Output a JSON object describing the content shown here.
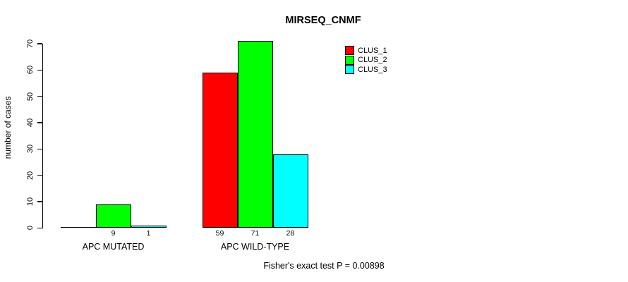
{
  "chart_data": {
    "type": "bar",
    "title": "MIRSEQ_CNMF",
    "xlabel": "",
    "ylabel": "number of cases",
    "categories": [
      "APC MUTATED",
      "APC WILD-TYPE"
    ],
    "series": [
      {
        "name": "CLUS_1",
        "color": "#ff0000",
        "values": [
          0,
          59
        ]
      },
      {
        "name": "CLUS_2",
        "color": "#00ff00",
        "values": [
          9,
          71
        ]
      },
      {
        "name": "CLUS_3",
        "color": "#00ffff",
        "values": [
          1,
          28
        ]
      }
    ],
    "bar_value_labels": [
      [
        "",
        "9",
        "1"
      ],
      [
        "59",
        "71",
        "28"
      ]
    ],
    "yticks": [
      0,
      10,
      20,
      30,
      40,
      50,
      60,
      70
    ],
    "ylim": [
      0,
      70
    ],
    "grid": false,
    "legend_position": "inside-top-right",
    "annotation": "Fisher's exact test P = 0.00898"
  }
}
